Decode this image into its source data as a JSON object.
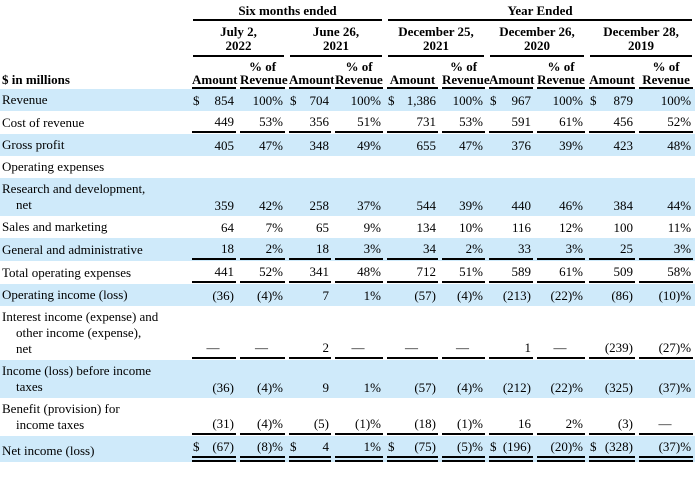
{
  "table": {
    "unit_label": "$ in millions",
    "col_groups": [
      {
        "label": "Six months ended",
        "periods": 2
      },
      {
        "label": "Year Ended",
        "periods": 3
      }
    ],
    "periods": [
      {
        "label": "July 2,\n2022"
      },
      {
        "label": "June 26,\n2021"
      },
      {
        "label": "December 25,\n2021"
      },
      {
        "label": "December 26,\n2020"
      },
      {
        "label": "December 28,\n2019"
      }
    ],
    "subheaders": {
      "amount": "Amount",
      "pct": "% of\nRevenue"
    },
    "rows": [
      {
        "label": "Revenue",
        "shaded": true,
        "rule": "none",
        "cells": [
          [
            "$",
            "854",
            "100%"
          ],
          [
            "$",
            "704",
            "100%"
          ],
          [
            "$",
            "1,386",
            "100%"
          ],
          [
            "$",
            "967",
            "100%"
          ],
          [
            "$",
            "879",
            "100%"
          ]
        ]
      },
      {
        "label": "Cost of revenue",
        "shaded": false,
        "rule": "single",
        "cells": [
          [
            "",
            "449",
            "53%"
          ],
          [
            "",
            "356",
            "51%"
          ],
          [
            "",
            "731",
            "53%"
          ],
          [
            "",
            "591",
            "61%"
          ],
          [
            "",
            "456",
            "52%"
          ]
        ]
      },
      {
        "label": "Gross profit",
        "shaded": true,
        "rule": "none",
        "cells": [
          [
            "",
            "405",
            "47%"
          ],
          [
            "",
            "348",
            "49%"
          ],
          [
            "",
            "655",
            "47%"
          ],
          [
            "",
            "376",
            "39%"
          ],
          [
            "",
            "423",
            "48%"
          ]
        ]
      },
      {
        "label": "Operating expenses",
        "shaded": false,
        "rule": "none",
        "cells": null
      },
      {
        "label": "Research and development,\nnet",
        "shaded": true,
        "rule": "none",
        "cells": [
          [
            "",
            "359",
            "42%"
          ],
          [
            "",
            "258",
            "37%"
          ],
          [
            "",
            "544",
            "39%"
          ],
          [
            "",
            "440",
            "46%"
          ],
          [
            "",
            "384",
            "44%"
          ]
        ]
      },
      {
        "label": "Sales and marketing",
        "shaded": false,
        "rule": "none",
        "cells": [
          [
            "",
            "64",
            "7%"
          ],
          [
            "",
            "65",
            "9%"
          ],
          [
            "",
            "134",
            "10%"
          ],
          [
            "",
            "116",
            "12%"
          ],
          [
            "",
            "100",
            "11%"
          ]
        ]
      },
      {
        "label": "General and administrative",
        "shaded": true,
        "rule": "single",
        "cells": [
          [
            "",
            "18",
            "2%"
          ],
          [
            "",
            "18",
            "3%"
          ],
          [
            "",
            "34",
            "2%"
          ],
          [
            "",
            "33",
            "3%"
          ],
          [
            "",
            "25",
            "3%"
          ]
        ]
      },
      {
        "label": "Total operating expenses",
        "shaded": false,
        "rule": "single",
        "cells": [
          [
            "",
            "441",
            "52%"
          ],
          [
            "",
            "341",
            "48%"
          ],
          [
            "",
            "712",
            "51%"
          ],
          [
            "",
            "589",
            "61%"
          ],
          [
            "",
            "509",
            "58%"
          ]
        ]
      },
      {
        "label": "Operating income (loss)",
        "shaded": true,
        "rule": "none",
        "cells": [
          [
            "",
            "(36)",
            "(4)%"
          ],
          [
            "",
            "7",
            "1%"
          ],
          [
            "",
            "(57)",
            "(4)%"
          ],
          [
            "",
            "(213)",
            "(22)%"
          ],
          [
            "",
            "(86)",
            "(10)%"
          ]
        ]
      },
      {
        "label": "Interest income (expense) and\nother income (expense),\nnet",
        "shaded": false,
        "rule": "single",
        "cells": [
          [
            "",
            "—",
            "—"
          ],
          [
            "",
            "2",
            "—"
          ],
          [
            "",
            "—",
            "—"
          ],
          [
            "",
            "1",
            "—"
          ],
          [
            "",
            "(239)",
            "(27)%"
          ]
        ]
      },
      {
        "label": "Income (loss) before income\ntaxes",
        "shaded": true,
        "rule": "none",
        "cells": [
          [
            "",
            "(36)",
            "(4)%"
          ],
          [
            "",
            "9",
            "1%"
          ],
          [
            "",
            "(57)",
            "(4)%"
          ],
          [
            "",
            "(212)",
            "(22)%"
          ],
          [
            "",
            "(325)",
            "(37)%"
          ]
        ]
      },
      {
        "label": "Benefit (provision) for\nincome taxes",
        "shaded": false,
        "rule": "single",
        "cells": [
          [
            "",
            "(31)",
            "(4)%"
          ],
          [
            "",
            "(5)",
            "(1)%"
          ],
          [
            "",
            "(18)",
            "(1)%"
          ],
          [
            "",
            "16",
            "2%"
          ],
          [
            "",
            "(3)",
            "—"
          ]
        ]
      },
      {
        "label": "Net income (loss)",
        "shaded": true,
        "rule": "double",
        "cells": [
          [
            "$",
            "(67)",
            "(8)%"
          ],
          [
            "$",
            "4",
            "1%"
          ],
          [
            "$",
            "(75)",
            "(5)%"
          ],
          [
            "$",
            "(196)",
            "(20)%"
          ],
          [
            "$",
            "(328)",
            "(37)%"
          ]
        ]
      }
    ]
  }
}
